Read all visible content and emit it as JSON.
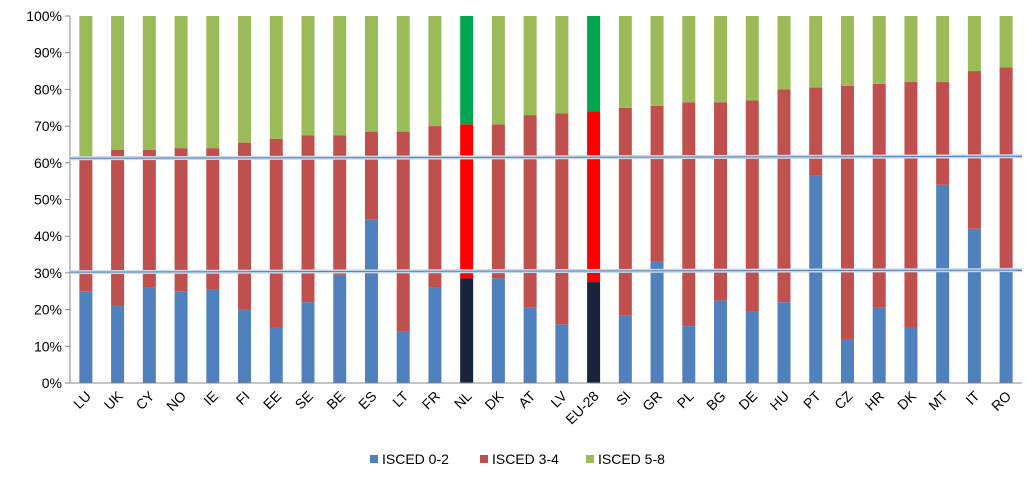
{
  "chart_data": {
    "type": "bar",
    "stacked": true,
    "percent": true,
    "categories": [
      "LU",
      "UK",
      "CY",
      "NO",
      "IE",
      "FI",
      "EE",
      "SE",
      "BE",
      "ES",
      "LT",
      "FR",
      "NL",
      "DK",
      "AT",
      "LV",
      "EU-28",
      "SI",
      "GR",
      "PL",
      "BG",
      "DE",
      "HU",
      "PT",
      "CZ",
      "HR",
      "DK",
      "MT",
      "IT",
      "RO"
    ],
    "series": [
      {
        "name": "ISCED 0-2",
        "color": "#4f81bd",
        "values": [
          25,
          21,
          26,
          25,
          25.5,
          20,
          15,
          22,
          29.5,
          44.5,
          14,
          26,
          28.5,
          28.5,
          20.5,
          16,
          27.5,
          18.5,
          33,
          15.5,
          22.5,
          19.5,
          22,
          56.5,
          12,
          20.5,
          15,
          54,
          42,
          31.5
        ]
      },
      {
        "name": "ISCED 3-4",
        "color": "#c0504d",
        "values": [
          36,
          42.5,
          37.5,
          39,
          38.5,
          45.5,
          51.5,
          45.5,
          38,
          24,
          54.5,
          44,
          42,
          42,
          52.5,
          57.5,
          46.5,
          56.5,
          42.5,
          61,
          54,
          57.5,
          58,
          24,
          69,
          61,
          67,
          28,
          43,
          54.5
        ]
      },
      {
        "name": "ISCED 5-8",
        "color": "#9bbb59",
        "values": [
          39,
          36.5,
          36.5,
          36,
          36,
          34.5,
          33.5,
          32.5,
          32.5,
          31.5,
          31.5,
          30,
          29.5,
          29.5,
          27,
          26.5,
          26,
          25,
          24.5,
          23.5,
          23.5,
          23,
          20,
          19.5,
          19,
          18.5,
          18,
          18,
          15,
          14
        ]
      }
    ],
    "highlight": {
      "categories": [
        "NL",
        "EU-28"
      ],
      "colors": [
        "#17243c",
        "#ff0000",
        "#00a650"
      ]
    },
    "yticks": [
      "0%",
      "10%",
      "20%",
      "30%",
      "40%",
      "50%",
      "60%",
      "70%",
      "80%",
      "90%",
      "100%"
    ],
    "ylim": [
      0,
      100
    ],
    "reference_lines": [
      30.5,
      61.5
    ],
    "legend_position": "bottom",
    "grid": false
  }
}
